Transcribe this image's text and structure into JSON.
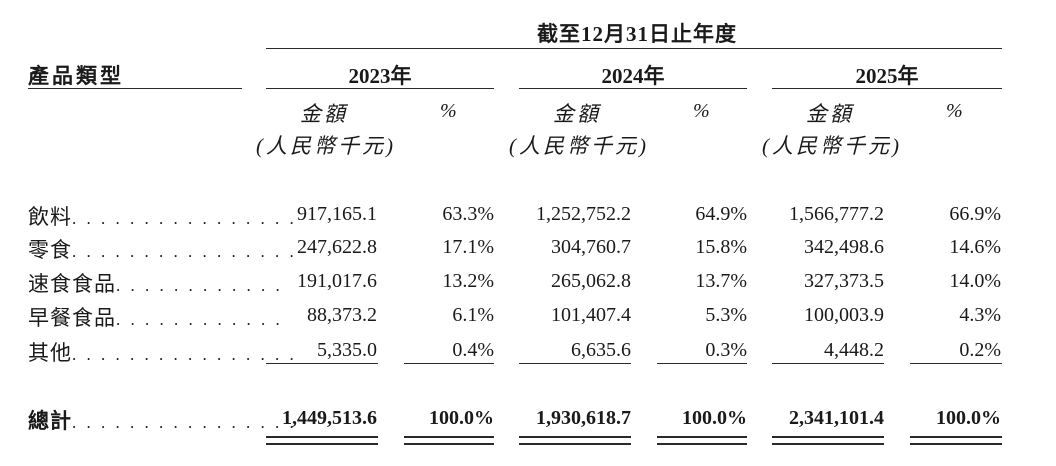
{
  "header": {
    "period_title": "截至12月31日止年度",
    "category_label": "產品類型",
    "years": [
      "2023年",
      "2024年",
      "2025年"
    ],
    "amount_label": "金額",
    "unit_label": "(人民幣千元)",
    "percent_label": "%"
  },
  "rows": [
    {
      "label": "飲料",
      "dots": ". . . . . . . . . . . . . . . .",
      "values": [
        "917,165.1",
        "63.3%",
        "1,252,752.2",
        "64.9%",
        "1,566,777.2",
        "66.9%"
      ]
    },
    {
      "label": "零食",
      "dots": ". . . . . . . . . . . . . . . .",
      "values": [
        "247,622.8",
        "17.1%",
        "304,760.7",
        "15.8%",
        "342,498.6",
        "14.6%"
      ]
    },
    {
      "label": "速食食品",
      "dots": ". . . . . . . . . . . .",
      "values": [
        "191,017.6",
        "13.2%",
        "265,062.8",
        "13.7%",
        "327,373.5",
        "14.0%"
      ]
    },
    {
      "label": "早餐食品",
      "dots": ". . . . . . . . . . . .",
      "values": [
        "88,373.2",
        "6.1%",
        "101,407.4",
        "5.3%",
        "100,003.9",
        "4.3%"
      ]
    },
    {
      "label": "其他",
      "dots": ". . . . . . . . . . . . . . . .",
      "values": [
        "5,335.0",
        "0.4%",
        "6,635.6",
        "0.3%",
        "4,448.2",
        "0.2%"
      ]
    }
  ],
  "total": {
    "label": "總計",
    "dots": ". . . . . . . . . . . . . . . .",
    "values": [
      "1,449,513.6",
      "100.0%",
      "1,930,618.7",
      "100.0%",
      "2,341,101.4",
      "100.0%"
    ]
  }
}
